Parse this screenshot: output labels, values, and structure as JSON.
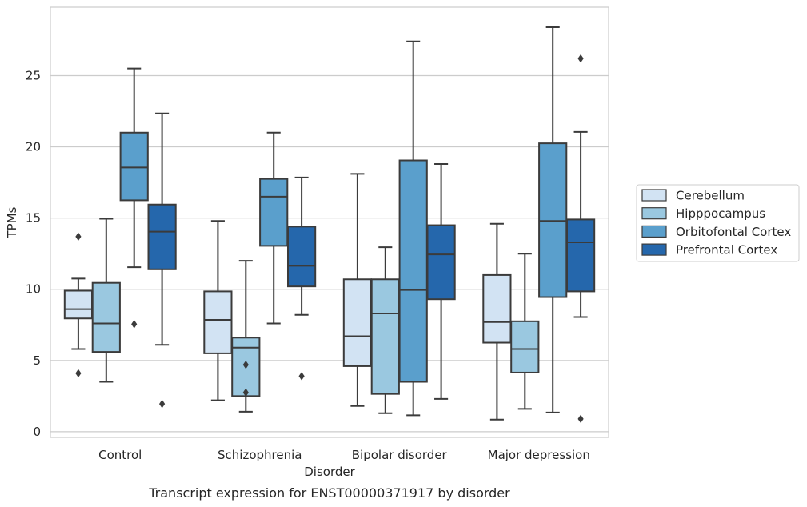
{
  "chart_data": {
    "type": "box",
    "caption": "Transcript expression for ENST00000371917 by disorder",
    "xlabel": "Disorder",
    "ylabel": "TPMs",
    "ylim": [
      -0.4,
      29.8
    ],
    "yticks": [
      0,
      5,
      10,
      15,
      20,
      25
    ],
    "grid": true,
    "legend_position": "right",
    "categories": [
      "Control",
      "Schizophrenia",
      "Bipolar disorder",
      "Major depression"
    ],
    "series": [
      {
        "name": "Cerebellum",
        "color": "#d2e3f3",
        "boxes": [
          {
            "whisker_low": 5.8,
            "q1": 7.95,
            "median": 8.6,
            "q3": 9.9,
            "whisker_high": 10.75,
            "outliers": [
              13.7,
              4.1
            ]
          },
          {
            "whisker_low": 2.2,
            "q1": 5.5,
            "median": 7.85,
            "q3": 9.85,
            "whisker_high": 14.8,
            "outliers": []
          },
          {
            "whisker_low": 1.8,
            "q1": 4.6,
            "median": 6.7,
            "q3": 10.7,
            "whisker_high": 18.1,
            "outliers": []
          },
          {
            "whisker_low": 0.85,
            "q1": 6.25,
            "median": 7.7,
            "q3": 11.0,
            "whisker_high": 14.6,
            "outliers": []
          }
        ]
      },
      {
        "name": "Hipppocampus",
        "color": "#9ac8e0",
        "boxes": [
          {
            "whisker_low": 3.5,
            "q1": 5.6,
            "median": 7.6,
            "q3": 10.45,
            "whisker_high": 14.95,
            "outliers": []
          },
          {
            "whisker_low": 1.4,
            "q1": 2.5,
            "median": 5.9,
            "q3": 6.6,
            "whisker_high": 12.0,
            "outliers": [
              4.7,
              2.75
            ]
          },
          {
            "whisker_low": 1.3,
            "q1": 2.65,
            "median": 8.3,
            "q3": 10.7,
            "whisker_high": 12.95,
            "outliers": []
          },
          {
            "whisker_low": 1.6,
            "q1": 4.15,
            "median": 5.8,
            "q3": 7.75,
            "whisker_high": 12.5,
            "outliers": []
          }
        ]
      },
      {
        "name": "Orbitofontal Cortex",
        "color": "#5a9fcc",
        "boxes": [
          {
            "whisker_low": 11.55,
            "q1": 16.25,
            "median": 18.55,
            "q3": 21.0,
            "whisker_high": 25.5,
            "outliers": [
              7.55
            ]
          },
          {
            "whisker_low": 7.6,
            "q1": 13.05,
            "median": 16.5,
            "q3": 17.75,
            "whisker_high": 21.0,
            "outliers": []
          },
          {
            "whisker_low": 1.15,
            "q1": 3.5,
            "median": 9.95,
            "q3": 19.05,
            "whisker_high": 27.4,
            "outliers": []
          },
          {
            "whisker_low": 1.35,
            "q1": 9.45,
            "median": 14.8,
            "q3": 20.25,
            "whisker_high": 28.4,
            "outliers": []
          }
        ]
      },
      {
        "name": "Prefrontal Cortex",
        "color": "#2567ac",
        "boxes": [
          {
            "whisker_low": 6.1,
            "q1": 11.4,
            "median": 14.05,
            "q3": 15.95,
            "whisker_high": 22.35,
            "outliers": [
              1.95
            ]
          },
          {
            "whisker_low": 8.2,
            "q1": 10.2,
            "median": 11.65,
            "q3": 14.4,
            "whisker_high": 17.85,
            "outliers": [
              3.9
            ]
          },
          {
            "whisker_low": 2.3,
            "q1": 9.3,
            "median": 12.45,
            "q3": 14.5,
            "whisker_high": 18.8,
            "outliers": []
          },
          {
            "whisker_low": 8.05,
            "q1": 9.85,
            "median": 13.3,
            "q3": 14.9,
            "whisker_high": 21.05,
            "outliers": [
              26.2,
              0.9
            ]
          }
        ]
      }
    ]
  }
}
